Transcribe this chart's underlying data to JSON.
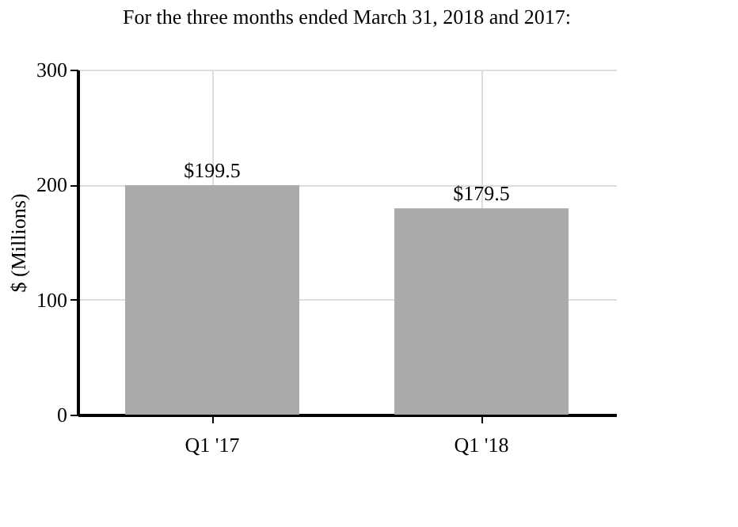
{
  "chart_data": {
    "type": "bar",
    "title": "For the three months ended March 31, 2018 and 2017:",
    "ylabel": "$ (Millions)",
    "categories": [
      "Q1 '17",
      "Q1 '18"
    ],
    "values": [
      199.5,
      179.5
    ],
    "value_labels": [
      "$199.5",
      "$179.5"
    ],
    "color": "#aaaaaa",
    "ylim": [
      0,
      300
    ],
    "yticks": [
      0,
      100,
      200,
      300
    ],
    "grid": true
  }
}
